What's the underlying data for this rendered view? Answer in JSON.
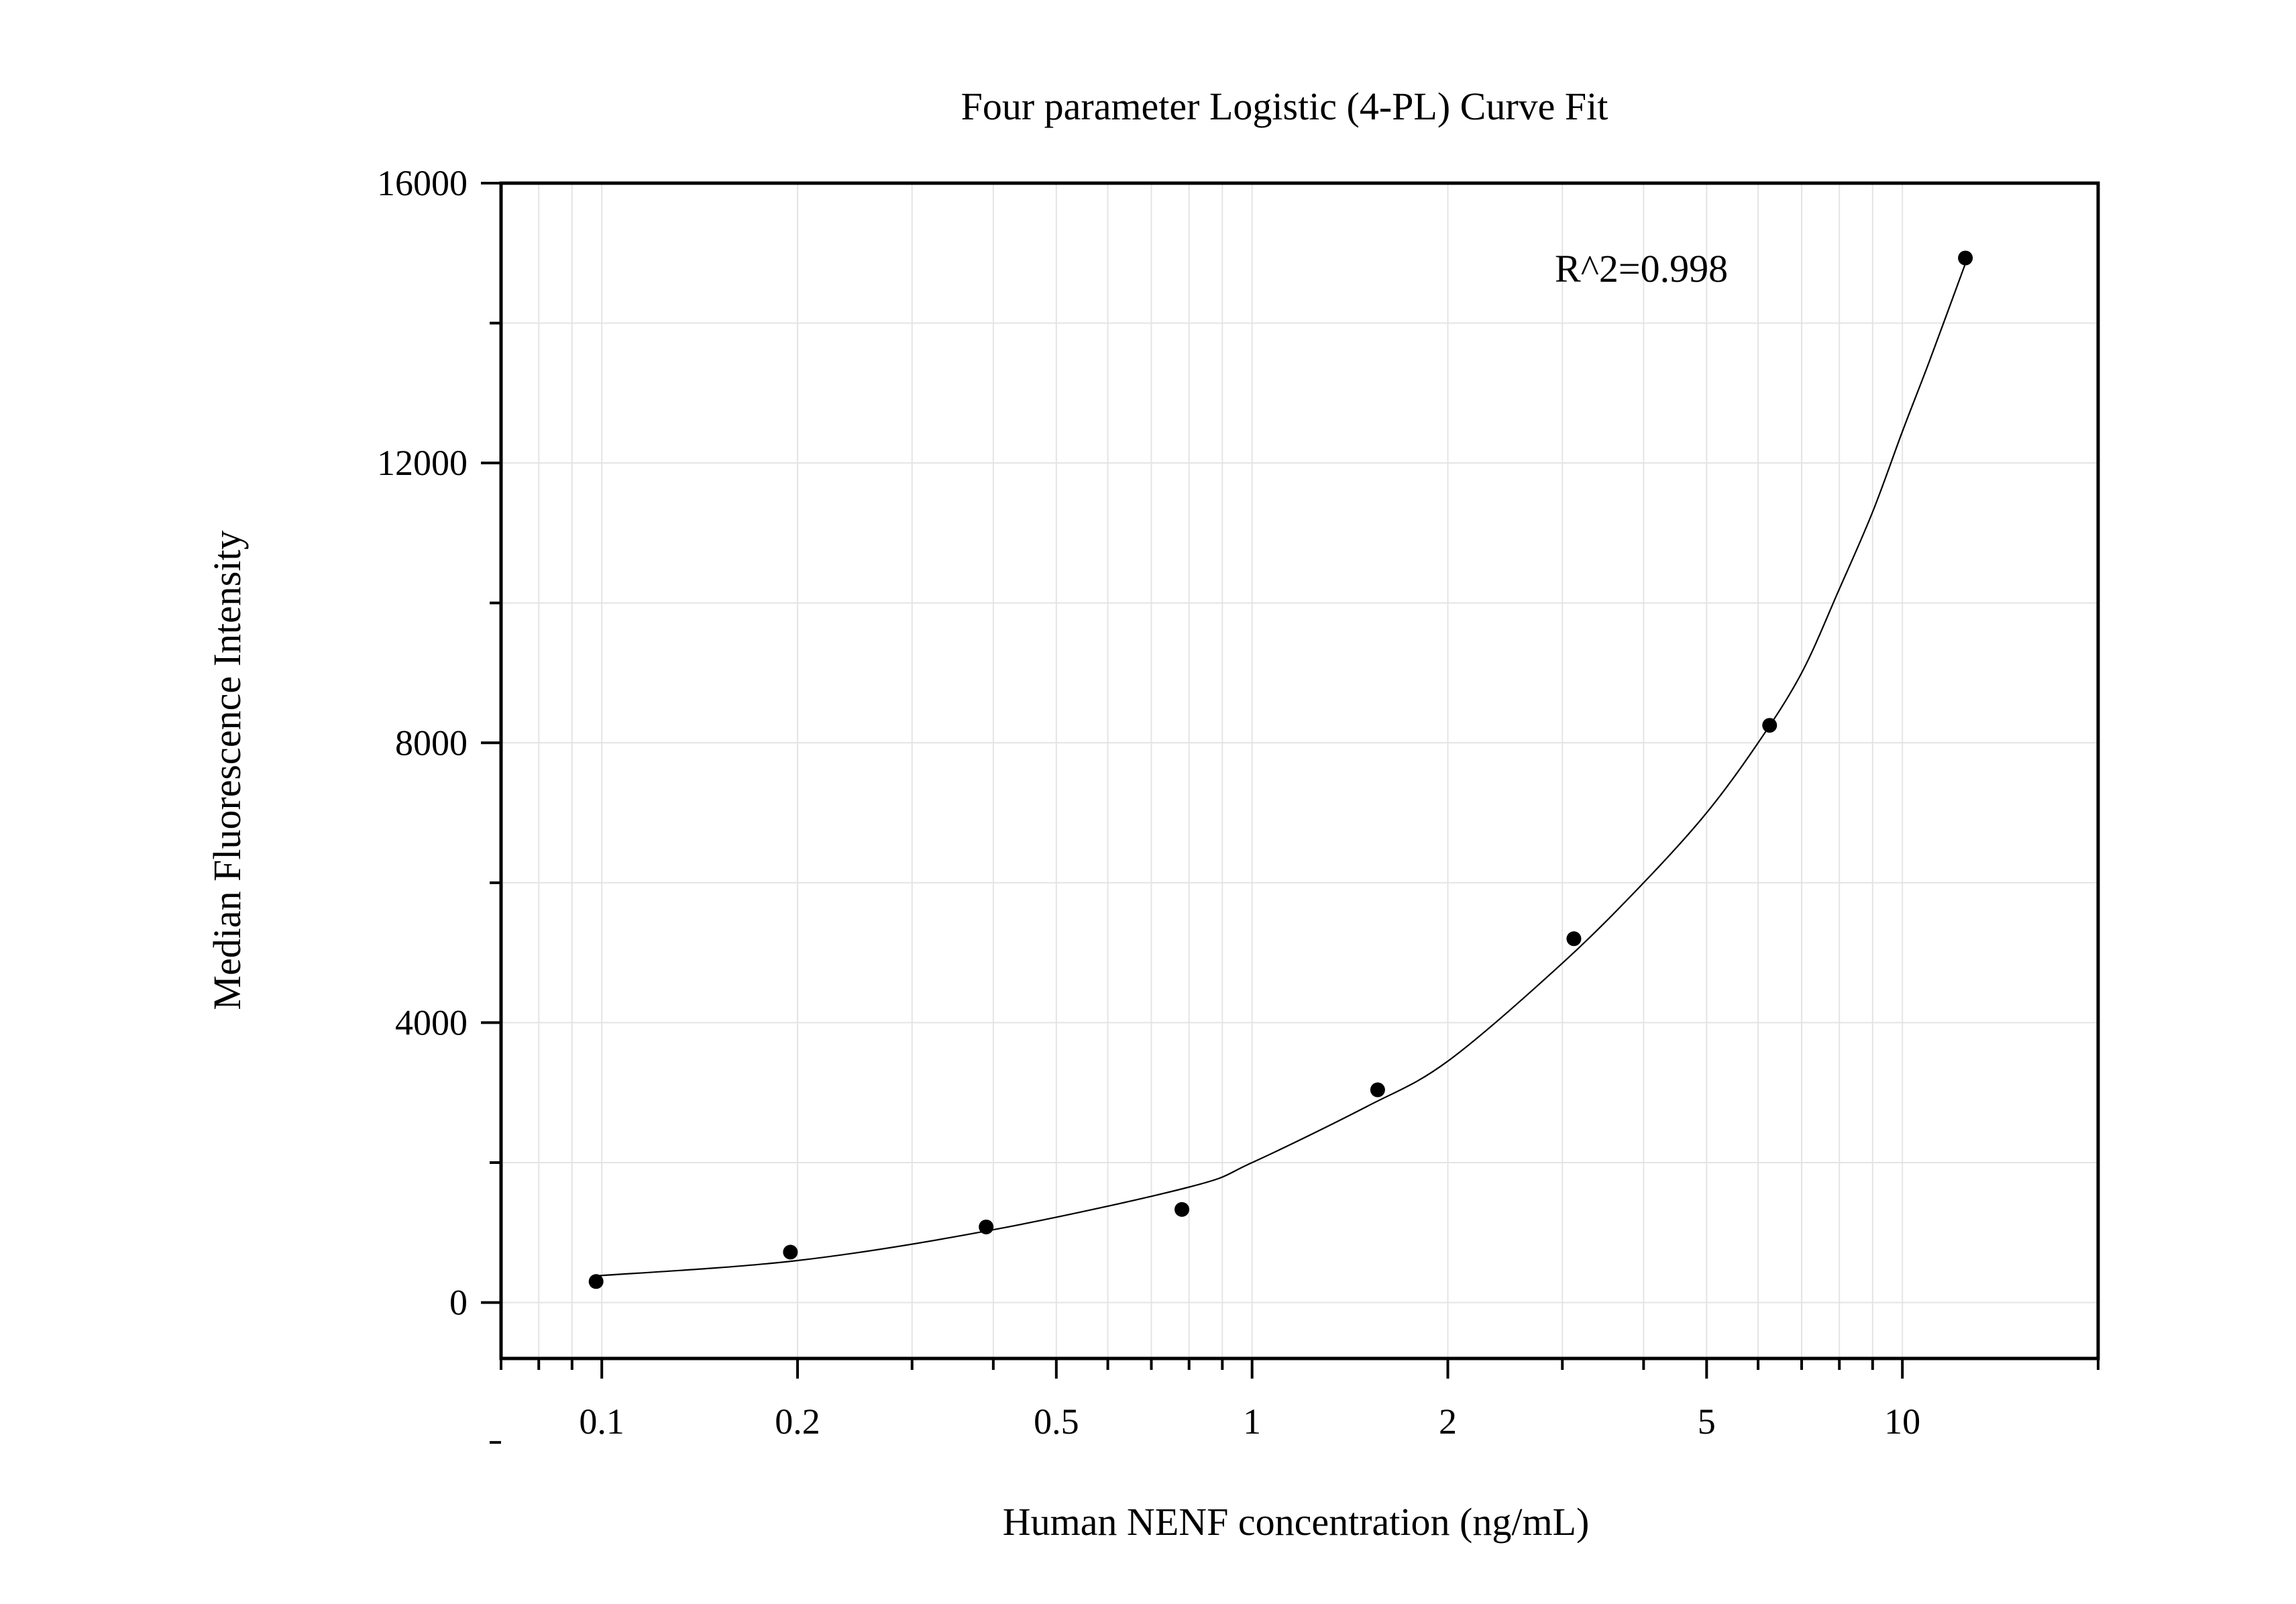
{
  "chart_data": {
    "type": "scatter",
    "title": "Four parameter Logistic (4-PL) Curve Fit",
    "xlabel": "Human NENF concentration (ng/mL)",
    "ylabel": "Median Fluorescence Intensity",
    "x_scale": "log",
    "xlim": [
      0.07,
      20
    ],
    "ylim": [
      -800,
      16000
    ],
    "x_ticks": [
      {
        "value": 0.1,
        "label": "0.1"
      },
      {
        "value": 0.2,
        "label": "0.2"
      },
      {
        "value": 0.5,
        "label": "0.5"
      },
      {
        "value": 1,
        "label": "1"
      },
      {
        "value": 2,
        "label": "2"
      },
      {
        "value": 5,
        "label": "5"
      },
      {
        "value": 10,
        "label": "10"
      }
    ],
    "y_ticks": [
      {
        "value": 0,
        "label": "0"
      },
      {
        "value": 4000,
        "label": "4000"
      },
      {
        "value": 8000,
        "label": "8000"
      },
      {
        "value": 12000,
        "label": "12000"
      },
      {
        "value": 16000,
        "label": "16000"
      }
    ],
    "grid": true,
    "points": [
      {
        "x": 0.098,
        "y": 300
      },
      {
        "x": 0.195,
        "y": 720
      },
      {
        "x": 0.39,
        "y": 1080
      },
      {
        "x": 0.78,
        "y": 1330
      },
      {
        "x": 1.56,
        "y": 3040
      },
      {
        "x": 3.125,
        "y": 5200
      },
      {
        "x": 6.25,
        "y": 8250
      },
      {
        "x": 12.5,
        "y": 14930
      }
    ],
    "fit_curve": [
      {
        "x": 0.098,
        "y": 380
      },
      {
        "x": 0.2,
        "y": 600
      },
      {
        "x": 0.4,
        "y": 1040
      },
      {
        "x": 0.8,
        "y": 1650
      },
      {
        "x": 1.0,
        "y": 2000
      },
      {
        "x": 1.5,
        "y": 2800
      },
      {
        "x": 2.0,
        "y": 3450
      },
      {
        "x": 3.0,
        "y": 4850
      },
      {
        "x": 4.0,
        "y": 6000
      },
      {
        "x": 5.0,
        "y": 7000
      },
      {
        "x": 6.0,
        "y": 8000
      },
      {
        "x": 7.0,
        "y": 9000
      },
      {
        "x": 8.0,
        "y": 10200
      },
      {
        "x": 9.0,
        "y": 11300
      },
      {
        "x": 10.0,
        "y": 12450
      },
      {
        "x": 11.0,
        "y": 13450
      },
      {
        "x": 12.5,
        "y": 14850
      }
    ],
    "annotation": "R^2=0.998"
  }
}
